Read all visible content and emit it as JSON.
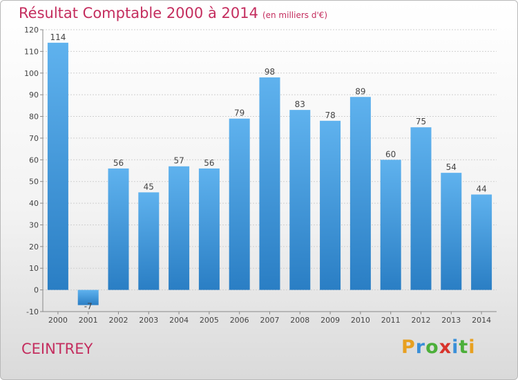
{
  "header": {
    "title": "Résultat Comptable 2000 à 2014",
    "subtitle": "(en milliers d'€)"
  },
  "footer": {
    "city": "CEINTREY",
    "logo": "Proxiti"
  },
  "colors": {
    "title": "#c42d5e",
    "bar_top": "#5fb2ee",
    "bar_bottom": "#2a7ec4",
    "logo_letters": [
      "#e8a020",
      "#3a8fd8",
      "#4caf3a",
      "#d8342c",
      "#3a8fd8",
      "#4caf3a",
      "#e8a020"
    ]
  },
  "chart_data": {
    "type": "bar",
    "categories": [
      "2000",
      "2001",
      "2002",
      "2003",
      "2004",
      "2005",
      "2006",
      "2007",
      "2008",
      "2009",
      "2010",
      "2011",
      "2012",
      "2013",
      "2014"
    ],
    "values": [
      114,
      -7,
      56,
      45,
      57,
      56,
      79,
      98,
      83,
      78,
      89,
      60,
      75,
      54,
      44
    ],
    "data_labels": [
      "114",
      "-7",
      "56",
      "45",
      "57",
      "56",
      "79",
      "98",
      "83",
      "78",
      "89",
      "60",
      "75",
      "54",
      "44"
    ],
    "yticks": [
      -10,
      0,
      10,
      20,
      30,
      40,
      50,
      60,
      70,
      80,
      90,
      100,
      110,
      120
    ],
    "ylim": [
      -10,
      120
    ],
    "grid": true
  }
}
